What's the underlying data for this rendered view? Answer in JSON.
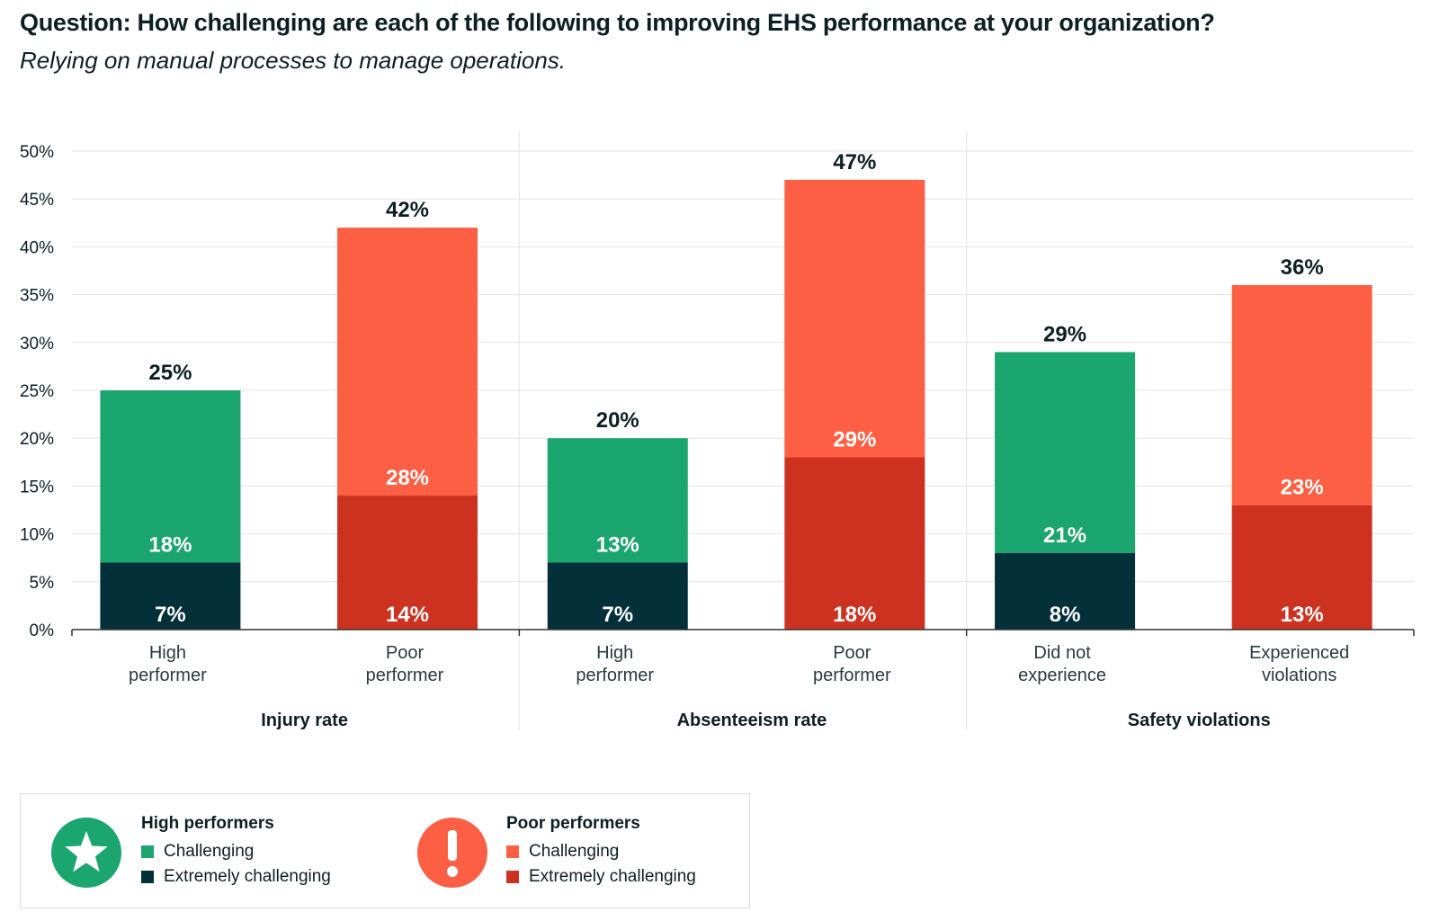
{
  "header": {
    "title": "Question: How challenging are each of the following to improving EHS performance at your organization?",
    "subtitle": "Relying on manual processes to manage operations."
  },
  "colors": {
    "high_challenging": "#1ba56f",
    "high_extreme": "#04303a",
    "poor_challenging": "#fc5f43",
    "poor_extreme": "#cd3220"
  },
  "legend": {
    "high": {
      "title": "High performers",
      "challenging": "Challenging",
      "extreme": "Extremely challenging",
      "icon": "star-icon"
    },
    "poor": {
      "title": "Poor performers",
      "challenging": "Challenging",
      "extreme": "Extremely challenging",
      "icon": "exclamation-icon"
    }
  },
  "chart_data": {
    "type": "bar",
    "stacked": true,
    "ylim": [
      0,
      50
    ],
    "yticks": [
      "0%",
      "5%",
      "10%",
      "15%",
      "20%",
      "25%",
      "30%",
      "35%",
      "40%",
      "45%",
      "50%"
    ],
    "grid": true,
    "legend_position": "bottom-left",
    "groups": [
      {
        "name": "Injury rate",
        "bars": [
          {
            "label": [
              "High",
              "performer"
            ],
            "kind": "high",
            "extreme": 7,
            "challenging": 18,
            "total": 25,
            "extreme_label": "7%",
            "challenging_label": "18%",
            "total_label": "25%"
          },
          {
            "label": [
              "Poor",
              "performer"
            ],
            "kind": "poor",
            "extreme": 14,
            "challenging": 28,
            "total": 42,
            "extreme_label": "14%",
            "challenging_label": "28%",
            "total_label": "42%"
          }
        ]
      },
      {
        "name": "Absenteeism rate",
        "bars": [
          {
            "label": [
              "High",
              "performer"
            ],
            "kind": "high",
            "extreme": 7,
            "challenging": 13,
            "total": 20,
            "extreme_label": "7%",
            "challenging_label": "13%",
            "total_label": "20%"
          },
          {
            "label": [
              "Poor",
              "performer"
            ],
            "kind": "poor",
            "extreme": 18,
            "challenging": 29,
            "total": 47,
            "extreme_label": "18%",
            "challenging_label": "29%",
            "total_label": "47%"
          }
        ]
      },
      {
        "name": "Safety violations",
        "bars": [
          {
            "label": [
              "Did not",
              "experience"
            ],
            "kind": "high",
            "extreme": 8,
            "challenging": 21,
            "total": 29,
            "extreme_label": "8%",
            "challenging_label": "21%",
            "total_label": "29%"
          },
          {
            "label": [
              "Experienced",
              "violations"
            ],
            "kind": "poor",
            "extreme": 13,
            "challenging": 23,
            "total": 36,
            "extreme_label": "13%",
            "challenging_label": "23%",
            "total_label": "36%"
          }
        ]
      }
    ]
  }
}
